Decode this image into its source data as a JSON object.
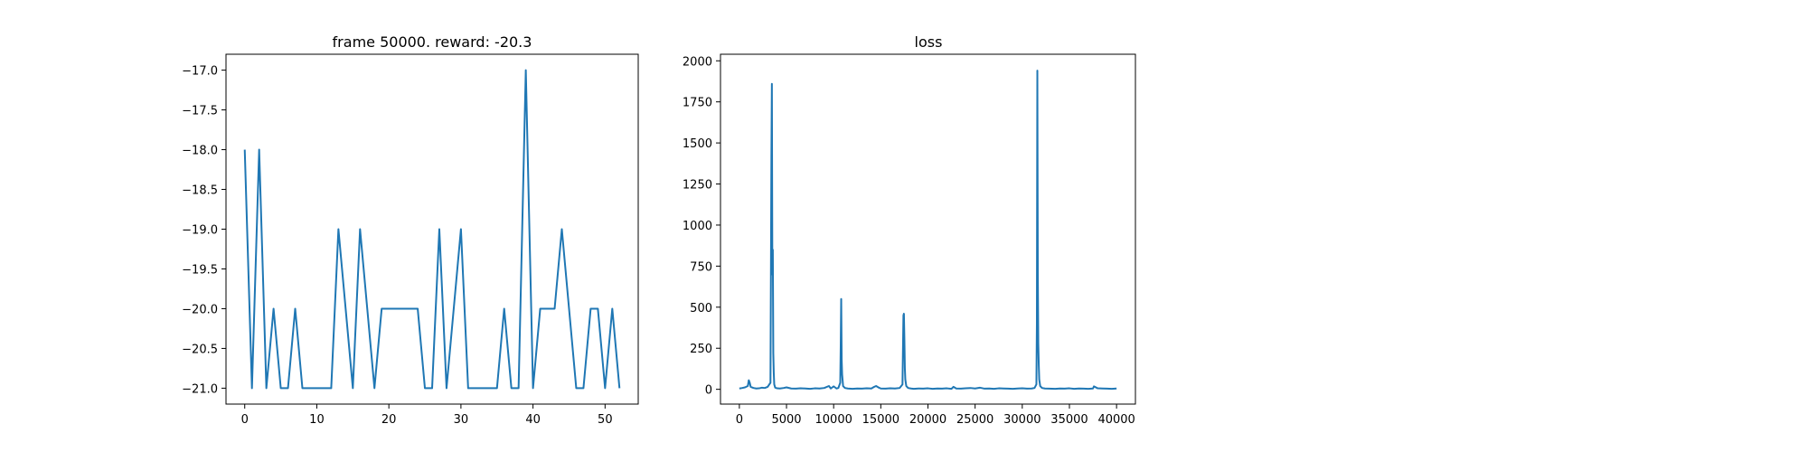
{
  "chart_data": [
    {
      "type": "line",
      "title": "frame 50000. reward: -20.3",
      "xlabel": "",
      "ylabel": "",
      "xlim": [
        -2.6,
        54.6
      ],
      "ylim": [
        -21.2,
        -16.8
      ],
      "x_ticks": [
        0,
        10,
        20,
        30,
        40,
        50
      ],
      "x_tick_labels": [
        "0",
        "10",
        "20",
        "30",
        "40",
        "50"
      ],
      "y_ticks": [
        -17.0,
        -17.5,
        -18.0,
        -18.5,
        -19.0,
        -19.5,
        -20.0,
        -20.5,
        -21.0
      ],
      "y_tick_labels": [
        "−17.0",
        "−17.5",
        "−18.0",
        "−18.5",
        "−19.0",
        "−19.5",
        "−20.0",
        "−20.5",
        "−21.0"
      ],
      "grid": false,
      "series": [
        {
          "color": "#1f77b4",
          "x": [
            0,
            1,
            2,
            3,
            4,
            5,
            6,
            7,
            8,
            9,
            10,
            11,
            12,
            13,
            14,
            15,
            16,
            17,
            18,
            19,
            20,
            21,
            22,
            23,
            24,
            25,
            26,
            27,
            28,
            29,
            30,
            31,
            32,
            33,
            34,
            35,
            36,
            37,
            38,
            39,
            40,
            41,
            42,
            43,
            44,
            45,
            46,
            47,
            48,
            49,
            50,
            51,
            52
          ],
          "y": [
            -18,
            -21,
            -18,
            -21,
            -20,
            -21,
            -21,
            -20,
            -21,
            -21,
            -21,
            -21,
            -21,
            -19,
            -20,
            -21,
            -19,
            -20,
            -21,
            -20,
            -20,
            -20,
            -20,
            -20,
            -20,
            -21,
            -21,
            -19,
            -21,
            -20,
            -19,
            -21,
            -21,
            -21,
            -21,
            -21,
            -20,
            -21,
            -21,
            -17,
            -21,
            -20,
            -20,
            -20,
            -19,
            -20,
            -21,
            -21,
            -20,
            -20,
            -21,
            -20,
            -21
          ]
        }
      ]
    },
    {
      "type": "line",
      "title": "loss",
      "xlabel": "",
      "ylabel": "",
      "xlim": [
        -2000,
        42000
      ],
      "ylim": [
        -90,
        2040
      ],
      "x_ticks": [
        0,
        5000,
        10000,
        15000,
        20000,
        25000,
        30000,
        35000,
        40000
      ],
      "x_tick_labels": [
        "0",
        "5000",
        "10000",
        "15000",
        "20000",
        "25000",
        "30000",
        "35000",
        "40000"
      ],
      "y_ticks": [
        0,
        250,
        500,
        750,
        1000,
        1250,
        1500,
        1750,
        2000
      ],
      "y_tick_labels": [
        "0",
        "250",
        "500",
        "750",
        "1000",
        "1250",
        "1500",
        "1750",
        "2000"
      ],
      "grid": false,
      "series": [
        {
          "color": "#1f77b4",
          "x": [
            0,
            300,
            600,
            900,
            1000,
            1100,
            1200,
            1500,
            1800,
            2100,
            2400,
            2700,
            3000,
            3300,
            3400,
            3450,
            3500,
            3550,
            3600,
            3650,
            3700,
            3800,
            4000,
            4300,
            4700,
            5000,
            5500,
            6000,
            6500,
            7000,
            7500,
            8000,
            8500,
            9000,
            9500,
            9700,
            10000,
            10300,
            10500,
            10700,
            10750,
            10800,
            10850,
            10900,
            11000,
            11200,
            11500,
            12000,
            12500,
            13000,
            13500,
            14000,
            14300,
            14500,
            14800,
            15000,
            15500,
            16000,
            16500,
            17000,
            17300,
            17400,
            17450,
            17500,
            17550,
            17600,
            17700,
            17900,
            18200,
            18500,
            19000,
            19500,
            20000,
            20500,
            21000,
            21500,
            22000,
            22500,
            22700,
            23000,
            23500,
            24000,
            24500,
            25000,
            25500,
            26000,
            26500,
            27000,
            27500,
            28000,
            28500,
            29000,
            29500,
            30000,
            30500,
            31000,
            31300,
            31500,
            31550,
            31600,
            31650,
            31700,
            31750,
            31800,
            31900,
            32100,
            32400,
            32800,
            33500,
            34000,
            34500,
            35000,
            35500,
            36000,
            36500,
            37000,
            37500,
            37600,
            38000,
            38500,
            39000,
            39500,
            40000
          ],
          "y": [
            5,
            8,
            12,
            20,
            55,
            40,
            15,
            8,
            5,
            6,
            10,
            8,
            15,
            40,
            1420,
            1860,
            700,
            850,
            220,
            100,
            30,
            10,
            6,
            5,
            8,
            12,
            5,
            4,
            6,
            5,
            3,
            6,
            5,
            8,
            20,
            5,
            18,
            5,
            8,
            40,
            270,
            550,
            180,
            90,
            20,
            8,
            5,
            3,
            5,
            4,
            6,
            5,
            15,
            20,
            10,
            5,
            4,
            6,
            5,
            8,
            30,
            450,
            460,
            310,
            130,
            60,
            20,
            8,
            5,
            3,
            5,
            4,
            6,
            3,
            5,
            4,
            6,
            3,
            15,
            5,
            4,
            6,
            8,
            5,
            10,
            4,
            5,
            3,
            6,
            5,
            4,
            3,
            5,
            6,
            4,
            5,
            8,
            30,
            400,
            1940,
            700,
            280,
            150,
            60,
            20,
            8,
            5,
            4,
            3,
            5,
            4,
            6,
            3,
            5,
            4,
            3,
            5,
            18,
            6,
            5,
            4,
            3,
            5
          ]
        }
      ]
    }
  ]
}
